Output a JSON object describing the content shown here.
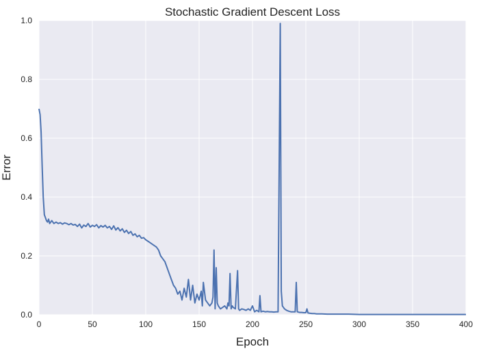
{
  "chart_data": {
    "type": "line",
    "title": "Stochastic Gradient Descent Loss",
    "xlabel": "Epoch",
    "ylabel": "Error",
    "xlim": [
      0,
      400
    ],
    "ylim": [
      0.0,
      1.0
    ],
    "xticks": [
      0,
      50,
      100,
      150,
      200,
      250,
      300,
      350,
      400
    ],
    "yticks": [
      0.0,
      0.2,
      0.4,
      0.6,
      0.8,
      1.0
    ],
    "xtick_labels": [
      "0",
      "50",
      "100",
      "150",
      "200",
      "250",
      "300",
      "350",
      "400"
    ],
    "ytick_labels": [
      "0.0",
      "0.2",
      "0.4",
      "0.6",
      "0.8",
      "1.0"
    ],
    "grid": true,
    "background": "#eaeaf2",
    "grid_color": "#ffffff",
    "line_color": "#4c72b0",
    "series": [
      {
        "x": [
          0,
          1,
          2,
          3,
          4,
          5,
          6,
          7,
          8,
          9,
          10,
          12,
          14,
          16,
          18,
          20,
          22,
          24,
          26,
          28,
          30,
          32,
          34,
          36,
          38,
          40,
          42,
          44,
          46,
          48,
          50,
          52,
          54,
          56,
          58,
          60,
          62,
          64,
          66,
          68,
          70,
          72,
          74,
          76,
          78,
          80,
          82,
          84,
          86,
          88,
          90,
          92,
          94,
          96,
          98,
          100,
          102,
          104,
          106,
          108,
          110,
          112,
          114,
          116,
          118,
          120,
          122,
          124,
          126,
          128,
          130,
          132,
          134,
          136,
          138,
          140,
          142,
          144,
          146,
          148,
          150,
          152,
          153,
          154,
          156,
          158,
          160,
          162,
          163,
          164,
          165,
          166,
          167,
          168,
          170,
          172,
          174,
          176,
          177,
          178,
          179,
          180,
          181,
          182,
          184,
          186,
          187,
          188,
          190,
          192,
          194,
          196,
          198,
          200,
          202,
          204,
          206,
          207,
          208,
          210,
          212,
          214,
          216,
          218,
          220,
          222,
          224,
          226,
          227,
          228,
          230,
          232,
          234,
          236,
          238,
          240,
          241,
          242,
          244,
          246,
          248,
          250,
          251,
          252,
          254,
          256,
          258,
          260,
          265,
          270,
          280,
          290,
          300,
          320,
          340,
          360,
          380,
          400
        ],
        "y": [
          0.7,
          0.68,
          0.62,
          0.5,
          0.4,
          0.34,
          0.33,
          0.32,
          0.315,
          0.325,
          0.31,
          0.32,
          0.31,
          0.315,
          0.31,
          0.313,
          0.308,
          0.312,
          0.31,
          0.306,
          0.31,
          0.305,
          0.307,
          0.3,
          0.308,
          0.295,
          0.305,
          0.3,
          0.31,
          0.298,
          0.304,
          0.3,
          0.306,
          0.295,
          0.303,
          0.298,
          0.304,
          0.295,
          0.3,
          0.29,
          0.302,
          0.288,
          0.296,
          0.285,
          0.292,
          0.28,
          0.287,
          0.276,
          0.283,
          0.27,
          0.275,
          0.265,
          0.27,
          0.26,
          0.262,
          0.255,
          0.25,
          0.245,
          0.24,
          0.235,
          0.23,
          0.22,
          0.2,
          0.19,
          0.18,
          0.16,
          0.14,
          0.12,
          0.1,
          0.09,
          0.07,
          0.08,
          0.05,
          0.09,
          0.06,
          0.12,
          0.05,
          0.1,
          0.04,
          0.07,
          0.05,
          0.08,
          0.03,
          0.11,
          0.05,
          0.04,
          0.03,
          0.04,
          0.06,
          0.22,
          0.02,
          0.16,
          0.04,
          0.03,
          0.02,
          0.025,
          0.03,
          0.02,
          0.04,
          0.03,
          0.14,
          0.02,
          0.03,
          0.025,
          0.02,
          0.15,
          0.02,
          0.015,
          0.02,
          0.018,
          0.015,
          0.02,
          0.015,
          0.03,
          0.01,
          0.015,
          0.01,
          0.065,
          0.01,
          0.012,
          0.01,
          0.011,
          0.01,
          0.01,
          0.009,
          0.01,
          0.01,
          0.99,
          0.08,
          0.03,
          0.02,
          0.015,
          0.012,
          0.01,
          0.01,
          0.01,
          0.11,
          0.01,
          0.008,
          0.008,
          0.007,
          0.007,
          0.02,
          0.006,
          0.005,
          0.004,
          0.004,
          0.003,
          0.003,
          0.002,
          0.002,
          0.002,
          0.001,
          0.001,
          0.001,
          0.001,
          0.001,
          0.001
        ]
      }
    ]
  }
}
